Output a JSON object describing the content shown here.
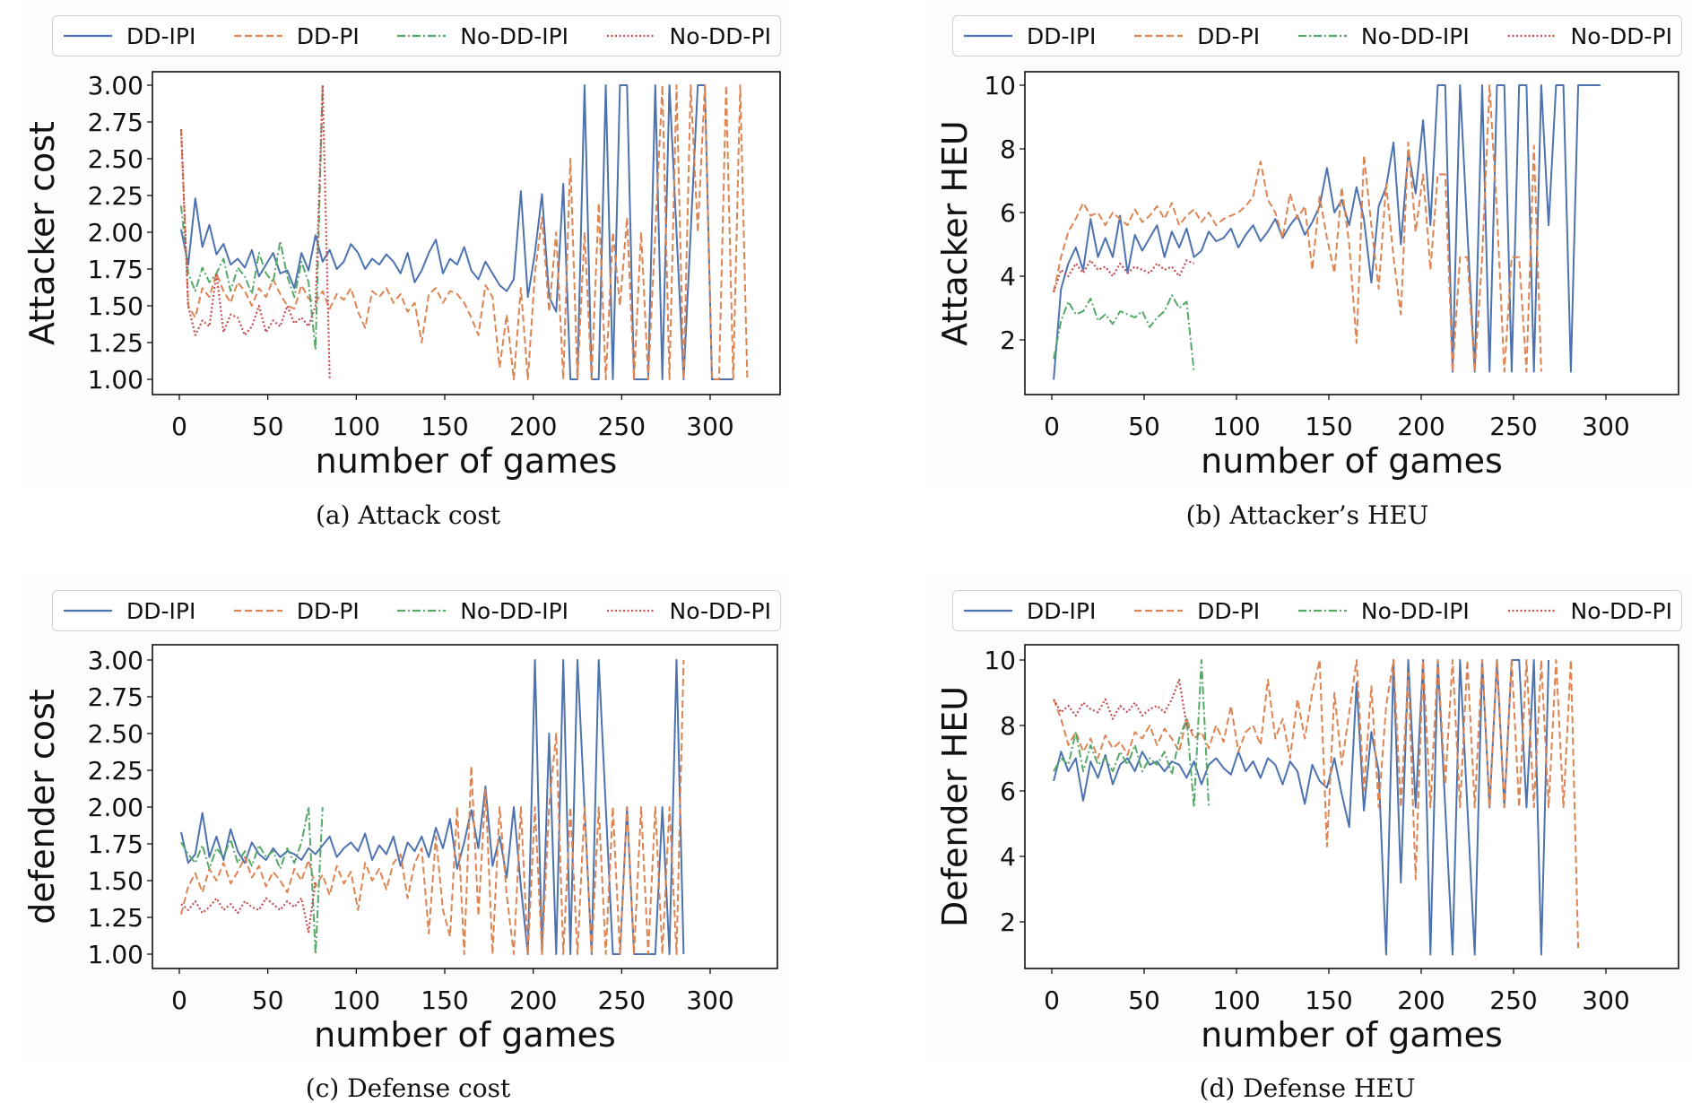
{
  "legend": [
    {
      "label": "DD-IPI",
      "color": "#4C72B0",
      "style": "solid"
    },
    {
      "label": "DD-PI",
      "color": "#DD8452",
      "style": "dashed"
    },
    {
      "label": "No-DD-IPI",
      "color": "#55A868",
      "style": "dashdot"
    },
    {
      "label": "No-DD-PI",
      "color": "#C44E52",
      "style": "dotted"
    }
  ],
  "chart_data": [
    {
      "id": "a",
      "type": "line",
      "caption": "(a) Attack cost",
      "xlabel": "number of games",
      "ylabel": "Attacker cost",
      "xlim": [
        -15,
        340
      ],
      "ylim": [
        0.9,
        3.1
      ],
      "xticks": [
        0,
        50,
        100,
        150,
        200,
        250,
        300
      ],
      "yticks": [
        1.0,
        1.25,
        1.5,
        1.75,
        2.0,
        2.25,
        2.5,
        2.75,
        3.0
      ],
      "ytick_labels": [
        "1.00",
        "1.25",
        "1.50",
        "1.75",
        "2.00",
        "2.25",
        "2.50",
        "2.75",
        "3.00"
      ],
      "legend_position": "top",
      "series": [
        {
          "name": "DD-IPI",
          "x_start": 1,
          "x_step": 4,
          "values": [
            2.02,
            1.78,
            2.23,
            1.9,
            2.05,
            1.85,
            1.92,
            1.78,
            1.82,
            1.76,
            1.88,
            1.7,
            1.78,
            1.86,
            1.72,
            1.74,
            1.62,
            1.86,
            1.74,
            1.98,
            1.8,
            1.88,
            1.75,
            1.8,
            1.92,
            1.86,
            1.75,
            1.82,
            1.78,
            1.85,
            1.8,
            1.72,
            1.86,
            1.66,
            1.74,
            1.86,
            1.95,
            1.72,
            1.82,
            1.78,
            1.9,
            1.74,
            1.68,
            1.8,
            1.72,
            1.64,
            1.6,
            1.68,
            2.28,
            1.56,
            1.86,
            2.26,
            1.56,
            1.46,
            2.33,
            1.0,
            1.0,
            3.0,
            1.0,
            1.0,
            3.0,
            1.0,
            3.0,
            3.0,
            1.0,
            1.0,
            1.0,
            3.0,
            1.0,
            3.0,
            2.0,
            1.0,
            2.0,
            3.0,
            3.0,
            1.0,
            1.0,
            1.0,
            1.0
          ]
        },
        {
          "name": "DD-PI",
          "x_start": 1,
          "x_step": 4,
          "values": [
            2.7,
            1.5,
            1.42,
            1.62,
            1.56,
            1.72,
            1.6,
            1.52,
            1.66,
            1.6,
            1.5,
            1.62,
            1.56,
            1.68,
            1.58,
            1.5,
            1.48,
            1.64,
            1.55,
            1.52,
            1.6,
            1.48,
            1.58,
            1.54,
            1.62,
            1.46,
            1.35,
            1.6,
            1.56,
            1.62,
            1.52,
            1.58,
            1.46,
            1.52,
            1.25,
            1.58,
            1.62,
            1.52,
            1.6,
            1.58,
            1.52,
            1.42,
            1.3,
            1.64,
            1.56,
            1.08,
            1.44,
            1.0,
            1.62,
            1.0,
            1.72,
            2.1,
            1.46,
            2.0,
            1.0,
            2.5,
            1.0,
            2.0,
            1.0,
            2.2,
            1.0,
            2.0,
            1.5,
            2.1,
            1.0,
            2.0,
            1.0,
            2.0,
            3.0,
            1.0,
            3.0,
            1.0,
            3.0,
            2.0,
            3.0,
            1.0,
            1.0,
            3.0,
            1.0,
            3.0,
            1.0
          ]
        },
        {
          "name": "No-DD-IPI",
          "x_start": 1,
          "x_step": 4,
          "values": [
            2.18,
            1.72,
            1.6,
            1.76,
            1.66,
            1.72,
            1.82,
            1.6,
            1.76,
            1.7,
            1.58,
            1.86,
            1.72,
            1.66,
            1.94,
            1.7,
            1.56,
            1.8,
            1.66,
            1.2,
            3.0
          ]
        },
        {
          "name": "No-DD-PI",
          "x_start": 1,
          "x_step": 4,
          "values": [
            2.7,
            1.5,
            1.3,
            1.4,
            1.36,
            1.72,
            1.32,
            1.44,
            1.42,
            1.3,
            1.36,
            1.5,
            1.32,
            1.4,
            1.36,
            1.5,
            1.38,
            1.42,
            1.36,
            1.5,
            3.0,
            1.0
          ]
        }
      ]
    },
    {
      "id": "b",
      "type": "line",
      "caption": "(b) Attacker’s HEU",
      "xlabel": "number of games",
      "ylabel": "Attacker HEU",
      "xlim": [
        -15,
        340
      ],
      "ylim": [
        0.3,
        10.5
      ],
      "xticks": [
        0,
        50,
        100,
        150,
        200,
        250,
        300
      ],
      "yticks": [
        2,
        4,
        6,
        8,
        10
      ],
      "ytick_labels": [
        "2",
        "4",
        "6",
        "8",
        "10"
      ],
      "legend_position": "top",
      "series": [
        {
          "name": "DD-IPI",
          "x_start": 1,
          "x_step": 4,
          "values": [
            0.75,
            3.6,
            4.4,
            4.9,
            4.2,
            5.8,
            4.6,
            5.2,
            4.6,
            5.9,
            4.1,
            5.3,
            4.8,
            5.2,
            5.6,
            4.6,
            5.4,
            4.9,
            5.5,
            4.6,
            4.8,
            5.4,
            5.1,
            5.2,
            5.5,
            4.9,
            5.3,
            5.6,
            5.1,
            5.4,
            5.8,
            5.2,
            5.6,
            5.9,
            5.3,
            5.7,
            6.2,
            7.4,
            6.0,
            6.4,
            5.6,
            6.8,
            5.8,
            3.8,
            6.2,
            6.8,
            8.2,
            5.0,
            7.9,
            6.6,
            8.9,
            5.6,
            10.0,
            10.0,
            1.0,
            10.0,
            5.4,
            1.0,
            10.0,
            1.0,
            10.0,
            10.0,
            1.0,
            10.0,
            10.0,
            1.0,
            10.0,
            5.6,
            10.0,
            10.0,
            1.0,
            10.0,
            10.0,
            10.0,
            10.0
          ]
        },
        {
          "name": "DD-PI",
          "x_start": 1,
          "x_step": 4,
          "values": [
            3.5,
            4.6,
            5.4,
            5.8,
            6.3,
            5.9,
            6.0,
            5.6,
            6.0,
            5.8,
            5.6,
            6.1,
            5.7,
            5.9,
            6.2,
            5.8,
            6.3,
            5.6,
            5.9,
            6.1,
            5.7,
            6.0,
            5.6,
            5.8,
            5.9,
            6.0,
            6.2,
            6.5,
            7.6,
            6.4,
            6.0,
            5.2,
            6.6,
            5.8,
            6.2,
            4.2,
            6.5,
            5.2,
            4.1,
            6.8,
            5.0,
            1.9,
            7.8,
            5.6,
            3.6,
            6.9,
            4.6,
            2.8,
            8.2,
            5.4,
            7.2,
            4.2,
            7.2,
            7.2,
            1.0,
            4.6,
            4.6,
            1.0,
            4.6,
            10.0,
            6.0,
            1.0,
            4.6,
            4.6,
            1.0,
            8.1,
            1.0
          ]
        },
        {
          "name": "No-DD-IPI",
          "x_start": 1,
          "x_step": 4,
          "values": [
            1.4,
            2.6,
            3.2,
            2.8,
            2.9,
            3.3,
            2.6,
            2.8,
            2.5,
            2.9,
            2.8,
            2.7,
            2.9,
            2.4,
            2.7,
            2.9,
            3.4,
            3.0,
            3.2,
            1.0
          ]
        },
        {
          "name": "No-DD-PI",
          "x_start": 1,
          "x_step": 4,
          "values": [
            3.5,
            4.2,
            4.0,
            4.4,
            4.1,
            4.5,
            4.2,
            4.3,
            4.0,
            4.4,
            4.1,
            4.3,
            4.2,
            4.1,
            4.4,
            4.2,
            4.3,
            4.0,
            4.5,
            4.4
          ]
        }
      ]
    },
    {
      "id": "c",
      "type": "line",
      "caption": "(c) Defense cost",
      "xlabel": "number of games",
      "ylabel": "defender cost",
      "xlim": [
        -15,
        340
      ],
      "ylim": [
        0.9,
        3.1
      ],
      "xticks": [
        0,
        50,
        100,
        150,
        200,
        250,
        300
      ],
      "yticks": [
        1.0,
        1.25,
        1.5,
        1.75,
        2.0,
        2.25,
        2.5,
        2.75,
        3.0
      ],
      "ytick_labels": [
        "1.00",
        "1.25",
        "1.50",
        "1.75",
        "2.00",
        "2.25",
        "2.50",
        "2.75",
        "3.00"
      ],
      "legend_position": "top",
      "series": [
        {
          "name": "DD-IPI",
          "x_start": 1,
          "x_step": 4,
          "values": [
            1.83,
            1.62,
            1.68,
            1.96,
            1.66,
            1.8,
            1.64,
            1.85,
            1.7,
            1.62,
            1.76,
            1.68,
            1.64,
            1.72,
            1.66,
            1.7,
            1.68,
            1.64,
            1.72,
            1.68,
            1.74,
            1.8,
            1.66,
            1.72,
            1.76,
            1.7,
            1.82,
            1.64,
            1.74,
            1.68,
            1.8,
            1.6,
            1.76,
            1.7,
            1.8,
            1.66,
            1.86,
            1.72,
            1.92,
            1.58,
            1.76,
            1.98,
            1.72,
            2.14,
            1.6,
            1.8,
            1.52,
            2.0,
            1.46,
            1.0,
            3.0,
            1.0,
            2.5,
            1.0,
            3.0,
            1.0,
            3.0,
            2.0,
            1.0,
            3.0,
            2.0,
            1.0,
            1.0,
            2.0,
            1.0,
            1.0,
            1.0,
            1.0,
            2.0,
            1.0,
            3.0,
            1.0
          ]
        },
        {
          "name": "DD-PI",
          "x_start": 1,
          "x_step": 4,
          "values": [
            1.27,
            1.46,
            1.55,
            1.42,
            1.58,
            1.5,
            1.62,
            1.48,
            1.56,
            1.66,
            1.52,
            1.6,
            1.46,
            1.56,
            1.5,
            1.42,
            1.58,
            1.5,
            1.64,
            1.46,
            1.54,
            1.4,
            1.6,
            1.48,
            1.56,
            1.3,
            1.62,
            1.5,
            1.58,
            1.44,
            1.62,
            1.68,
            1.38,
            1.62,
            1.72,
            1.14,
            1.8,
            1.3,
            1.12,
            2.0,
            1.0,
            2.28,
            1.26,
            2.12,
            1.0,
            2.0,
            1.4,
            1.0,
            2.0,
            1.0,
            2.0,
            1.0,
            2.0,
            2.5,
            1.0,
            2.0,
            1.0,
            2.0,
            1.0,
            2.0,
            1.0,
            2.0,
            1.0,
            2.0,
            1.0,
            2.0,
            1.0,
            2.0,
            1.0,
            2.0,
            1.0,
            3.0
          ]
        },
        {
          "name": "No-DD-IPI",
          "x_start": 1,
          "x_step": 4,
          "values": [
            1.76,
            1.68,
            1.62,
            1.74,
            1.58,
            1.72,
            1.66,
            1.78,
            1.62,
            1.7,
            1.6,
            1.74,
            1.66,
            1.7,
            1.58,
            1.72,
            1.62,
            1.76,
            2.0,
            1.0,
            2.0
          ]
        },
        {
          "name": "No-DD-PI",
          "x_start": 1,
          "x_step": 4,
          "values": [
            1.34,
            1.3,
            1.36,
            1.28,
            1.32,
            1.38,
            1.3,
            1.34,
            1.28,
            1.36,
            1.32,
            1.3,
            1.38,
            1.34,
            1.3,
            1.36,
            1.32,
            1.38,
            1.15,
            1.5
          ]
        }
      ]
    },
    {
      "id": "d",
      "type": "line",
      "caption": "(d) Defense HEU",
      "xlabel": "number of games",
      "ylabel": "Defender HEU",
      "xlim": [
        -15,
        340
      ],
      "ylim": [
        0.3,
        10.5
      ],
      "xticks": [
        0,
        50,
        100,
        150,
        200,
        250,
        300
      ],
      "yticks": [
        2,
        4,
        6,
        8,
        10
      ],
      "ytick_labels": [
        "2",
        "4",
        "6",
        "8",
        "10"
      ],
      "legend_position": "top",
      "series": [
        {
          "name": "DD-IPI",
          "x_start": 1,
          "x_step": 4,
          "values": [
            6.3,
            7.2,
            6.6,
            7.0,
            5.7,
            6.9,
            6.4,
            7.1,
            6.2,
            6.8,
            7.0,
            6.6,
            7.2,
            6.8,
            6.9,
            6.6,
            6.9,
            6.8,
            6.4,
            6.9,
            6.2,
            6.8,
            7.0,
            6.7,
            6.5,
            7.2,
            6.6,
            6.9,
            6.4,
            7.0,
            6.8,
            6.2,
            6.9,
            6.6,
            5.6,
            6.8,
            6.3,
            6.1,
            7.0,
            5.9,
            4.9,
            9.3,
            5.4,
            7.8,
            6.6,
            1.0,
            10.0,
            3.2,
            10.0,
            5.5,
            10.0,
            1.0,
            10.0,
            5.5,
            1.0,
            10.0,
            5.5,
            1.0,
            10.0,
            5.5,
            10.0,
            5.5,
            10.0,
            10.0,
            5.5,
            10.0,
            1.0,
            10.0
          ]
        },
        {
          "name": "DD-PI",
          "x_start": 1,
          "x_step": 4,
          "values": [
            8.8,
            8.2,
            7.4,
            7.8,
            7.2,
            7.6,
            7.0,
            7.7,
            7.3,
            7.5,
            7.1,
            7.8,
            7.6,
            8.0,
            7.4,
            7.9,
            7.6,
            7.2,
            8.2,
            7.6,
            7.8,
            7.3,
            8.0,
            7.5,
            8.6,
            7.2,
            7.8,
            8.0,
            7.4,
            9.4,
            7.6,
            8.2,
            7.0,
            8.8,
            7.6,
            9.0,
            10.0,
            4.3,
            9.0,
            6.8,
            8.4,
            10.0,
            6.0,
            9.2,
            5.5,
            8.6,
            10.0,
            5.5,
            9.6,
            3.3,
            10.0,
            5.5,
            10.0,
            6.2,
            10.0,
            5.5,
            10.0,
            5.5,
            10.0,
            5.5,
            10.0,
            5.5,
            10.0,
            5.5,
            10.0,
            5.5,
            10.0,
            5.5,
            10.0,
            5.5,
            10.0,
            1.2
          ]
        },
        {
          "name": "No-DD-IPI",
          "x_start": 1,
          "x_step": 4,
          "values": [
            6.6,
            7.0,
            6.8,
            7.8,
            6.6,
            7.4,
            6.8,
            7.0,
            6.6,
            7.2,
            6.8,
            7.4,
            6.6,
            7.0,
            6.8,
            7.2,
            6.5,
            7.6,
            8.2,
            5.5,
            10.0,
            5.5
          ]
        },
        {
          "name": "No-DD-PI",
          "x_start": 1,
          "x_step": 4,
          "values": [
            8.8,
            8.4,
            8.6,
            8.3,
            8.7,
            8.5,
            8.4,
            8.8,
            8.2,
            8.6,
            8.4,
            8.7,
            8.3,
            8.5,
            8.6,
            8.4,
            8.8,
            9.4,
            8.0,
            7.8
          ]
        }
      ]
    }
  ]
}
